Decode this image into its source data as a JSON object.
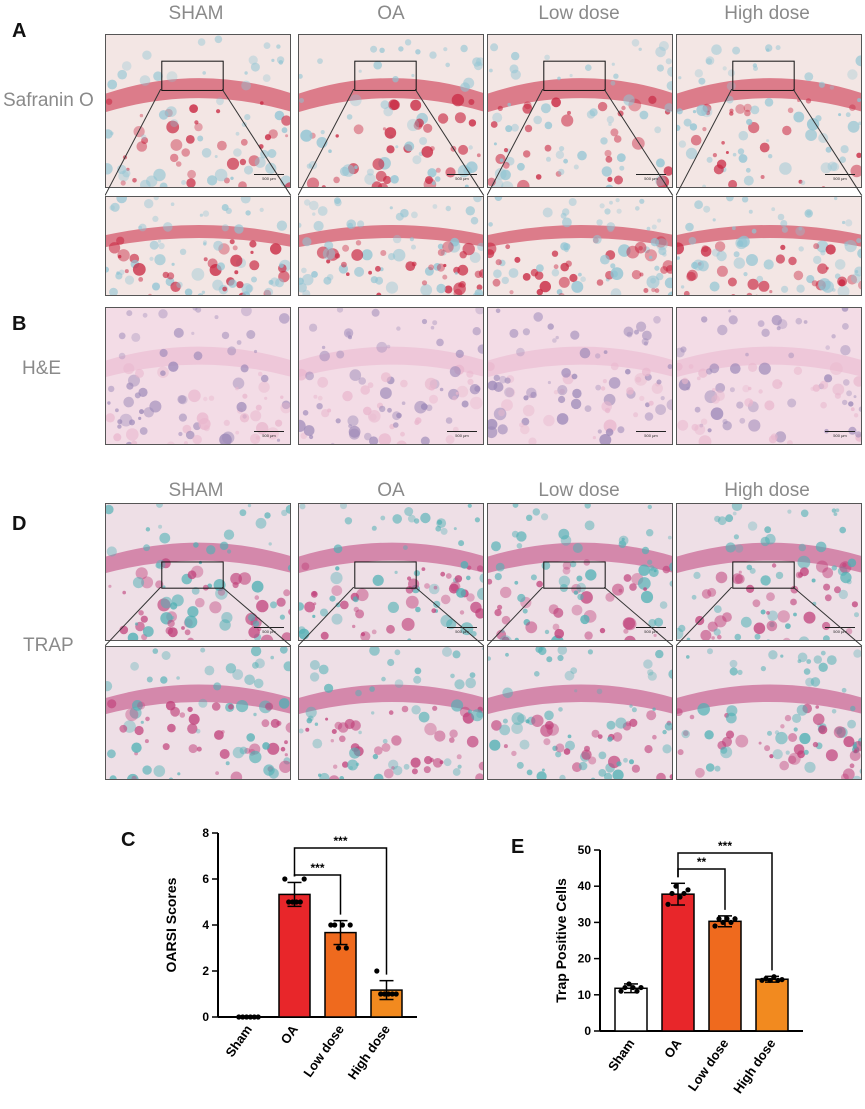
{
  "panels": {
    "A": {
      "letter": "A",
      "row_label": "Safranin O"
    },
    "B": {
      "letter": "B",
      "row_label": "H&E"
    },
    "C": {
      "letter": "C"
    },
    "D": {
      "letter": "D",
      "row_label": "TRAP"
    },
    "E": {
      "letter": "E"
    }
  },
  "group_labels": [
    "SHAM",
    "OA",
    "Low dose",
    "High dose"
  ],
  "scale_bar_text": "500 μm",
  "colors": {
    "safranin_bg": "#f3e6e4",
    "safranin_red": "#c8243f",
    "safranin_blue": "#8fc4d3",
    "he_pink": "#e9b7cd",
    "he_purple": "#9c89b8",
    "trap_bg": "#eedfe6",
    "trap_teal": "#4fb0b4",
    "trap_magenta": "#c0407a",
    "bar_sham": "#ffffff",
    "bar_oa": "#e8262a",
    "bar_low": "#ef6a1e",
    "bar_high": "#f28a1f"
  },
  "chart_data": [
    {
      "panel": "C",
      "type": "bar",
      "categories": [
        "Sham",
        "OA",
        "Low dose",
        "High dose"
      ],
      "values": [
        0,
        5.33,
        3.67,
        1.17
      ],
      "errors": [
        0,
        0.52,
        0.52,
        0.41
      ],
      "points": [
        [
          0,
          0,
          0,
          0,
          0,
          0
        ],
        [
          6,
          5,
          5,
          5,
          5,
          6
        ],
        [
          4,
          4,
          3,
          4,
          3,
          4
        ],
        [
          2,
          1,
          1,
          1,
          1,
          1
        ]
      ],
      "ylabel": "OARSI Scores",
      "ylim": [
        0,
        8
      ],
      "yticks": [
        0,
        2,
        4,
        6,
        8
      ],
      "significance": [
        {
          "from": "OA",
          "to": "Low dose",
          "label": "***"
        },
        {
          "from": "OA",
          "to": "High dose",
          "label": "***"
        }
      ]
    },
    {
      "panel": "E",
      "type": "bar",
      "categories": [
        "Sham",
        "OA",
        "Low dose",
        "High dose"
      ],
      "values": [
        11.8,
        37.8,
        30.3,
        14.3
      ],
      "errors": [
        1.2,
        3.0,
        1.5,
        0.8
      ],
      "points": [
        [
          11,
          12,
          13,
          12,
          11,
          12
        ],
        [
          35,
          38,
          40,
          37,
          38,
          39
        ],
        [
          29,
          31,
          30,
          31,
          30,
          31
        ],
        [
          14,
          14.5,
          14,
          15,
          14,
          14.2
        ]
      ],
      "ylabel": "Trap Positive Cells",
      "ylim": [
        0,
        50
      ],
      "yticks": [
        0,
        10,
        20,
        30,
        40,
        50
      ],
      "significance": [
        {
          "from": "OA",
          "to": "Low dose",
          "label": "**"
        },
        {
          "from": "OA",
          "to": "High dose",
          "label": "***"
        }
      ]
    }
  ]
}
